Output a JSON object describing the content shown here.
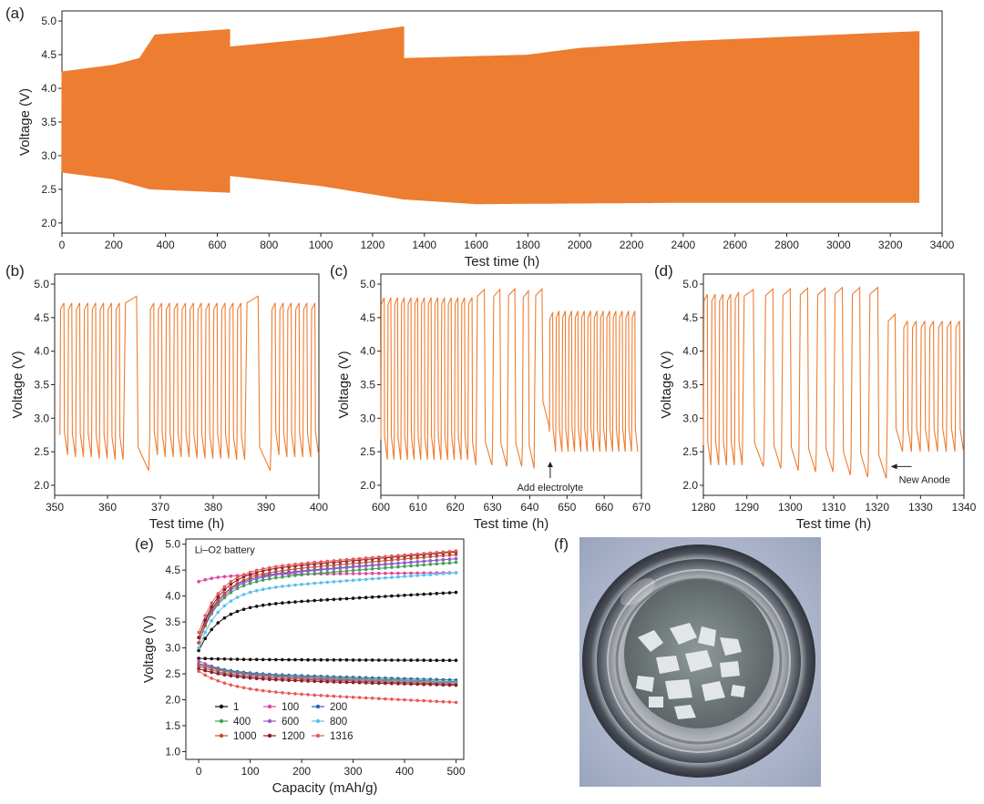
{
  "panel_labels": [
    "(a)",
    "(b)",
    "(c)",
    "(d)",
    "(e)",
    "(f)"
  ],
  "chart_data": [
    {
      "id": "a",
      "type": "line",
      "xlabel": "Test time (h)",
      "ylabel": "Voltage (V)",
      "xlim": [
        0,
        3400
      ],
      "ylim": [
        1.85,
        5.15
      ],
      "xticks": [
        "0",
        "200",
        "400",
        "600",
        "800",
        "1000",
        "1200",
        "1400",
        "1600",
        "1800",
        "2000",
        "2200",
        "2400",
        "2600",
        "2800",
        "3000",
        "3200",
        "3400"
      ],
      "yticks": [
        "2.0",
        "2.5",
        "3.0",
        "3.5",
        "4.0",
        "4.5",
        "5.0"
      ],
      "series_color": "#ED7D31",
      "segments": [
        {
          "t_start": 0,
          "t_end": 648,
          "period_h": 1,
          "charge_env": [
            [
              0,
              4.25
            ],
            [
              200,
              4.35
            ],
            [
              300,
              4.45
            ],
            [
              360,
              4.8
            ],
            [
              648,
              4.88
            ]
          ],
          "discharge_env": [
            [
              0,
              2.75
            ],
            [
              200,
              2.65
            ],
            [
              340,
              2.5
            ],
            [
              648,
              2.45
            ]
          ]
        },
        {
          "t_start": 648,
          "t_end": 1320,
          "period_h": 1,
          "charge_env": [
            [
              648,
              4.62
            ],
            [
              1000,
              4.75
            ],
            [
              1320,
              4.92
            ]
          ],
          "discharge_env": [
            [
              648,
              2.7
            ],
            [
              1000,
              2.55
            ],
            [
              1320,
              2.35
            ]
          ]
        },
        {
          "t_start": 1320,
          "t_end": 3310,
          "period_h": 1,
          "charge_env": [
            [
              1320,
              4.45
            ],
            [
              1800,
              4.5
            ],
            [
              2000,
              4.6
            ],
            [
              2400,
              4.7
            ],
            [
              3310,
              4.85
            ]
          ],
          "discharge_env": [
            [
              1320,
              2.35
            ],
            [
              1600,
              2.28
            ],
            [
              2400,
              2.3
            ],
            [
              3310,
              2.3
            ]
          ]
        }
      ]
    },
    {
      "id": "b",
      "type": "line",
      "xlabel": "Test time (h)",
      "ylabel": "Voltage (V)",
      "xlim": [
        350,
        400
      ],
      "ylim": [
        1.85,
        5.15
      ],
      "xticks": [
        "350",
        "360",
        "370",
        "380",
        "390",
        "400"
      ],
      "yticks": [
        "2.0",
        "2.5",
        "3.0",
        "3.5",
        "4.0",
        "4.5",
        "5.0"
      ],
      "cycles": [
        [
          351,
          352.5,
          4.72,
          2.45
        ],
        [
          352.5,
          354,
          4.72,
          2.42
        ],
        [
          354,
          355.5,
          4.72,
          2.42
        ],
        [
          355.5,
          357,
          4.72,
          2.42
        ],
        [
          357,
          358.5,
          4.72,
          2.4
        ],
        [
          358.5,
          360,
          4.72,
          2.4
        ],
        [
          360,
          361.5,
          4.72,
          2.38
        ],
        [
          361.5,
          363,
          4.72,
          2.38
        ],
        [
          363,
          368,
          4.82,
          2.22
        ],
        [
          368,
          369.5,
          4.72,
          2.45
        ],
        [
          369.5,
          371,
          4.72,
          2.42
        ],
        [
          371,
          372.5,
          4.72,
          2.42
        ],
        [
          372.5,
          374,
          4.72,
          2.42
        ],
        [
          374,
          375.5,
          4.72,
          2.42
        ],
        [
          375.5,
          377,
          4.72,
          2.4
        ],
        [
          377,
          378.5,
          4.72,
          2.4
        ],
        [
          378.5,
          380,
          4.72,
          2.4
        ],
        [
          380,
          381.5,
          4.72,
          2.4
        ],
        [
          381.5,
          383,
          4.72,
          2.4
        ],
        [
          383,
          384.5,
          4.72,
          2.38
        ],
        [
          384.5,
          386,
          4.72,
          2.38
        ],
        [
          386,
          391,
          4.82,
          2.22
        ],
        [
          391,
          392.5,
          4.72,
          2.45
        ],
        [
          392.5,
          394,
          4.72,
          2.42
        ],
        [
          394,
          395.5,
          4.72,
          2.42
        ],
        [
          395.5,
          397,
          4.72,
          2.42
        ],
        [
          397,
          398.5,
          4.72,
          2.42
        ],
        [
          398.5,
          400,
          4.72,
          2.45
        ]
      ]
    },
    {
      "id": "c",
      "type": "line",
      "xlabel": "Test time (h)",
      "ylabel": "Voltage (V)",
      "xlim": [
        600,
        670
      ],
      "ylim": [
        1.85,
        5.15
      ],
      "xticks": [
        "600",
        "610",
        "620",
        "630",
        "640",
        "650",
        "660",
        "670"
      ],
      "yticks": [
        "2.0",
        "2.5",
        "3.0",
        "3.5",
        "4.0",
        "4.5",
        "5.0"
      ],
      "annotation": "Add electrolyte",
      "annotation_point": [
        645.5,
        2.38
      ],
      "cycles": [
        [
          600,
          601.8,
          4.8,
          2.38
        ],
        [
          601.8,
          603.6,
          4.8,
          2.38
        ],
        [
          603.6,
          605.4,
          4.8,
          2.38
        ],
        [
          605.4,
          607.2,
          4.8,
          2.38
        ],
        [
          607.2,
          609,
          4.8,
          2.38
        ],
        [
          609,
          610.8,
          4.8,
          2.38
        ],
        [
          610.8,
          612.6,
          4.8,
          2.38
        ],
        [
          612.6,
          614.4,
          4.8,
          2.38
        ],
        [
          614.4,
          616.2,
          4.8,
          2.38
        ],
        [
          616.2,
          618,
          4.8,
          2.38
        ],
        [
          618,
          619.8,
          4.8,
          2.38
        ],
        [
          619.8,
          621.6,
          4.8,
          2.38
        ],
        [
          621.6,
          623.4,
          4.8,
          2.38
        ],
        [
          623.4,
          625.6,
          4.8,
          2.3
        ],
        [
          625.6,
          630,
          4.92,
          2.3
        ],
        [
          630,
          634,
          4.92,
          2.28
        ],
        [
          634,
          638,
          4.93,
          2.28
        ],
        [
          638,
          641.3,
          4.9,
          2.25
        ],
        [
          641.3,
          645.3,
          4.93,
          2.9
        ],
        [
          645.3,
          647,
          4.58,
          2.5
        ],
        [
          647,
          648.7,
          4.6,
          2.5
        ],
        [
          648.7,
          650.4,
          4.6,
          2.5
        ],
        [
          650.4,
          652.1,
          4.6,
          2.5
        ],
        [
          652.1,
          653.8,
          4.6,
          2.5
        ],
        [
          653.8,
          655.5,
          4.6,
          2.5
        ],
        [
          655.5,
          657.2,
          4.6,
          2.5
        ],
        [
          657.2,
          658.9,
          4.6,
          2.5
        ],
        [
          658.9,
          660.6,
          4.6,
          2.5
        ],
        [
          660.6,
          662.3,
          4.6,
          2.5
        ],
        [
          662.3,
          664,
          4.6,
          2.5
        ],
        [
          664,
          665.7,
          4.6,
          2.5
        ],
        [
          665.7,
          667.4,
          4.6,
          2.5
        ],
        [
          667.4,
          669.1,
          4.6,
          2.5
        ]
      ]
    },
    {
      "id": "d",
      "type": "line",
      "xlabel": "Test time (h)",
      "ylabel": "Voltage (V)",
      "xlim": [
        1280,
        1340
      ],
      "ylim": [
        1.85,
        5.15
      ],
      "xticks": [
        "1280",
        "1290",
        "1300",
        "1310",
        "1320",
        "1330",
        "1340"
      ],
      "yticks": [
        "2.0",
        "2.5",
        "3.0",
        "3.5",
        "4.0",
        "4.5",
        "5.0"
      ],
      "annotation": "New Anode",
      "annotation_point": [
        1322.5,
        2.28
      ],
      "cycles": [
        [
          1280,
          1281.8,
          4.85,
          2.3
        ],
        [
          1281.8,
          1283.6,
          4.85,
          2.3
        ],
        [
          1283.6,
          1285.4,
          4.85,
          2.3
        ],
        [
          1285.4,
          1287.2,
          4.85,
          2.3
        ],
        [
          1287.2,
          1289,
          4.88,
          2.3
        ],
        [
          1289,
          1294,
          4.92,
          2.28
        ],
        [
          1294,
          1298,
          4.93,
          2.25
        ],
        [
          1298,
          1302,
          4.93,
          2.22
        ],
        [
          1302,
          1306,
          4.94,
          2.2
        ],
        [
          1306,
          1310,
          4.94,
          2.2
        ],
        [
          1310,
          1314,
          4.95,
          2.15
        ],
        [
          1314,
          1318,
          4.95,
          2.12
        ],
        [
          1318,
          1322.3,
          4.95,
          2.1
        ],
        [
          1322.3,
          1326,
          4.55,
          2.5
        ],
        [
          1326,
          1328,
          4.45,
          2.5
        ],
        [
          1328,
          1330,
          4.45,
          2.5
        ],
        [
          1330,
          1332,
          4.45,
          2.5
        ],
        [
          1332,
          1334,
          4.45,
          2.5
        ],
        [
          1334,
          1336,
          4.45,
          2.5
        ],
        [
          1336,
          1338,
          4.45,
          2.5
        ],
        [
          1338,
          1340,
          4.45,
          2.5
        ]
      ]
    },
    {
      "id": "e",
      "type": "scatter",
      "title": "Li–O2 battery",
      "xlabel": "Capacity (mAh/g)",
      "ylabel": "Voltage (V)",
      "xlim": [
        -25,
        515
      ],
      "ylim": [
        0.85,
        5.1
      ],
      "xticks": [
        "0",
        "100",
        "200",
        "300",
        "400",
        "500"
      ],
      "yticks": [
        "1.0",
        "1.5",
        "2.0",
        "2.5",
        "3.0",
        "3.5",
        "4.0",
        "4.5",
        "5.0"
      ],
      "legend_position": "bottom-left",
      "series": [
        {
          "name": "1",
          "color": "#111111",
          "charge_end": 4.07,
          "discharge_end": 2.76,
          "charge_start": 2.95,
          "discharge_start": 2.8
        },
        {
          "name": "100",
          "color": "#e0449e",
          "charge_end": 4.45,
          "discharge_end": 2.3,
          "charge_start": 4.28,
          "discharge_start": 2.75
        },
        {
          "name": "200",
          "color": "#2a62b3",
          "charge_end": 4.72,
          "discharge_end": 2.38,
          "charge_start": 3.2,
          "discharge_start": 2.7
        },
        {
          "name": "400",
          "color": "#3fa34d",
          "charge_end": 4.65,
          "discharge_end": 2.35,
          "charge_start": 3.1,
          "discharge_start": 2.7
        },
        {
          "name": "600",
          "color": "#9b59d0",
          "charge_end": 4.72,
          "discharge_end": 2.33,
          "charge_start": 3.1,
          "discharge_start": 2.68
        },
        {
          "name": "800",
          "color": "#5bc0eb",
          "charge_end": 4.45,
          "discharge_end": 2.32,
          "charge_start": 3.0,
          "discharge_start": 2.6
        },
        {
          "name": "1000",
          "color": "#c0502a",
          "charge_end": 4.8,
          "discharge_end": 2.3,
          "charge_start": 3.1,
          "discharge_start": 2.65
        },
        {
          "name": "1200",
          "color": "#8b1a2b",
          "charge_end": 4.85,
          "discharge_end": 2.28,
          "charge_start": 3.2,
          "discharge_start": 2.6
        },
        {
          "name": "1316",
          "color": "#e85a5a",
          "charge_end": 4.87,
          "discharge_end": 1.95,
          "charge_start": 3.3,
          "discharge_start": 2.55
        }
      ]
    }
  ],
  "photo": {
    "label": "(f)",
    "description_icon": "crucible-photo"
  }
}
